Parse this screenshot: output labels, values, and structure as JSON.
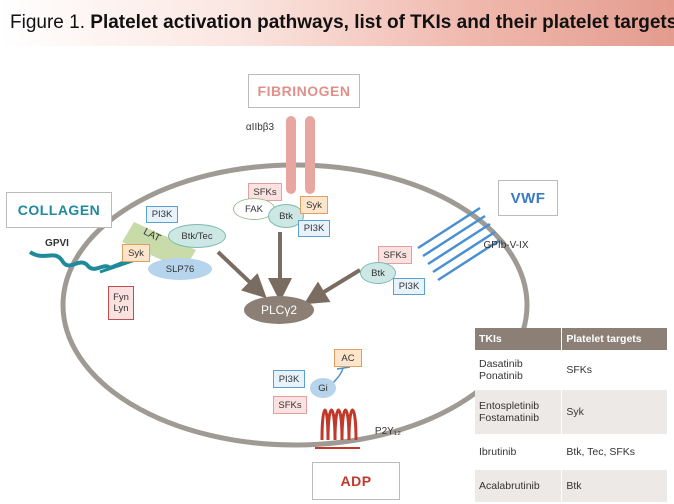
{
  "title": {
    "prefix": "Figure 1. ",
    "main": "Platelet activation pathways, list of TKIs and their platelet targets"
  },
  "labels": {
    "fibrinogen": "FIBRINOGEN",
    "integrin": "αIIbβ3",
    "collagen": "COLLAGEN",
    "gpvi": "GPVI",
    "vwf": "VWF",
    "gpib": "GPIb-V-IX",
    "adp": "ADP",
    "p2y12": "P2Y₁₂",
    "plc": "PLCγ2"
  },
  "nodes": {
    "pi3k": "PI3K",
    "lat": "LAT",
    "btk_tec": "Btk/Tec",
    "syk": "Syk",
    "slp76": "SLP76",
    "fyn": "Fyn",
    "lyn": "Lyn",
    "sfks": "SFKs",
    "fak": "FAK",
    "btk": "Btk",
    "ac": "AC",
    "gi": "Gi"
  },
  "colors": {
    "collagen": "#1f8a9a",
    "vwf": "#3a7ac0",
    "adp": "#c0392b",
    "fibrinogen": "#e0908a",
    "membrane": "#a09a94"
  },
  "table": {
    "headers": [
      "TKIs",
      "Platelet targets"
    ],
    "rows": [
      {
        "tkis": [
          "Dasatinib",
          "Ponatinib"
        ],
        "targets": "SFKs"
      },
      {
        "tkis": [
          "Entospletinib",
          "Fostamatinib"
        ],
        "targets": "Syk"
      },
      {
        "tkis": [
          "Ibrutinib"
        ],
        "targets": "Btk, Tec, SFKs"
      },
      {
        "tkis": [
          "Acalabrutinib"
        ],
        "targets": "Btk"
      }
    ]
  }
}
